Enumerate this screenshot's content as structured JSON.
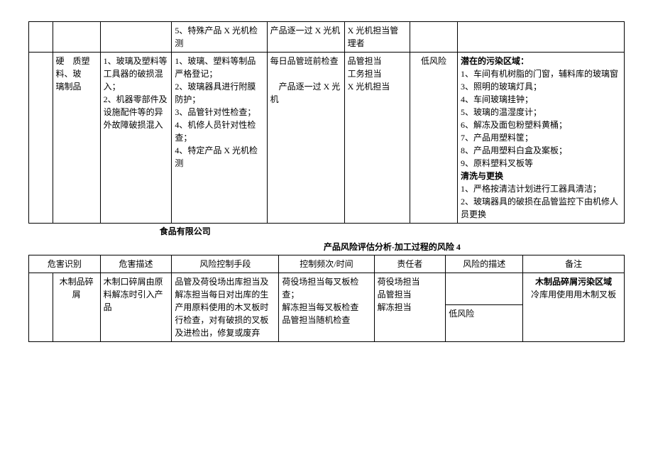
{
  "table1": {
    "row1": {
      "c3": "5、特殊产品 X 光机检测",
      "c4": "产品逐一过 X 光机",
      "c5": "X 光机担当管理者"
    },
    "row2": {
      "c1": "硬　质塑料、玻　璃制品",
      "c2": "1、玻璃及塑料等工具器的破损混入；\n2、机器零部件及设施配件等的异外故障破损混入",
      "c3": "1、玻璃、塑料等制品严格登记；\n2、玻璃器具进行附膜防护；\n3、品管针对性检查；\n4、机修人员针对性检查；\n4、特定产品 X 光机检测",
      "c4": "每日品管班前检查\n\n　产品逐一过 X 光机",
      "c5": "品管担当\n工务担当\nX 光机担当",
      "c6": "低风险",
      "c7": "潜在的污染区域：\n1、车间有机树脂的门窗，辅料库的玻璃窗\n3、照明的玻璃灯具；\n4、车间玻璃挂钟；\n5、玻璃的温湿度计；\n6、解冻及面包粉塑料黄桶；\n7、产品用塑料筐；\n8、产品用塑料白盒及案板；\n9、原料塑料叉板等\n清洗与更换\n1、严格按清洁计划进行工器具清洁；\n2、玻璃器具的破损在品管监控下由机修人员更换"
    }
  },
  "heading": {
    "left": "食品有限公司",
    "center": "产品风险评估分析-加工过程的风险 4"
  },
  "table2": {
    "headers": [
      "危害识别",
      "危害描述",
      "风险控制手段",
      "控制频次/时间",
      "责任者",
      "风险的描述",
      "备注"
    ],
    "row": {
      "c1a": "",
      "c1b": "木制品碎屑",
      "c2": "木制口碎屑由原料解冻时引入产品",
      "c3": "品管及荷役场出库担当及解冻担当每日对出库的生产用原料使用的木叉板时行检查，对有破损的叉板及进检出，修复或废弃",
      "c4": "荷役场担当每叉板检查；\n解冻担当每叉板检查\n品管担当随机检查",
      "c5": "荷役场担当\n品管担当\n解冻担当",
      "c6": "低风险",
      "c7t": "木制品碎屑污染区域",
      "c7b": "冷库用使用用木制叉板"
    }
  },
  "colwidths1": [
    "4%",
    "8%",
    "12%",
    "16%",
    "13%",
    "11%",
    "8%",
    "28%"
  ],
  "colwidths2": [
    "4%",
    "8%",
    "12%",
    "18%",
    "16%",
    "12%",
    "13%",
    "17%"
  ]
}
